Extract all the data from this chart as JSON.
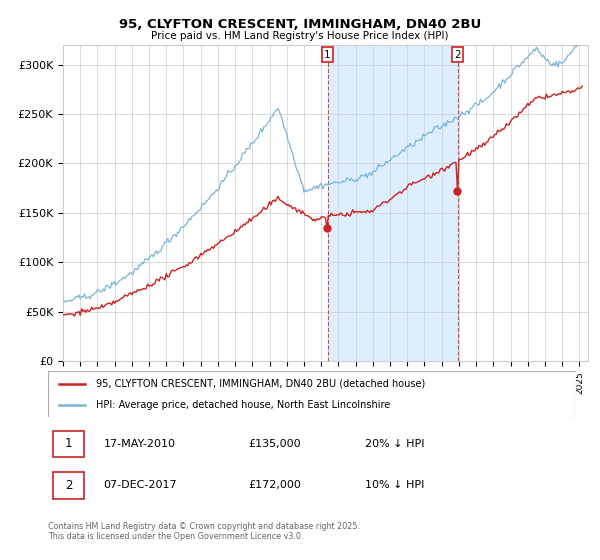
{
  "title": "95, CLYFTON CRESCENT, IMMINGHAM, DN40 2BU",
  "subtitle": "Price paid vs. HM Land Registry's House Price Index (HPI)",
  "xlim_start": 1995.0,
  "xlim_end": 2025.5,
  "ylim_min": 0,
  "ylim_max": 320000,
  "yticks": [
    0,
    50000,
    100000,
    150000,
    200000,
    250000,
    300000
  ],
  "ytick_labels": [
    "£0",
    "£50K",
    "£100K",
    "£150K",
    "£200K",
    "£250K",
    "£300K"
  ],
  "hpi_color": "#7ab4d8",
  "price_color": "#cc2222",
  "shade_color": "#ddeeff",
  "marker1_x": 2010.37,
  "marker2_x": 2017.92,
  "legend_price": "95, CLYFTON CRESCENT, IMMINGHAM, DN40 2BU (detached house)",
  "legend_hpi": "HPI: Average price, detached house, North East Lincolnshire",
  "annotation1_date": "17-MAY-2010",
  "annotation1_price": "£135,000",
  "annotation1_pct": "20% ↓ HPI",
  "annotation2_date": "07-DEC-2017",
  "annotation2_price": "£172,000",
  "annotation2_pct": "10% ↓ HPI",
  "footer": "Contains HM Land Registry data © Crown copyright and database right 2025.\nThis data is licensed under the Open Government Licence v3.0."
}
